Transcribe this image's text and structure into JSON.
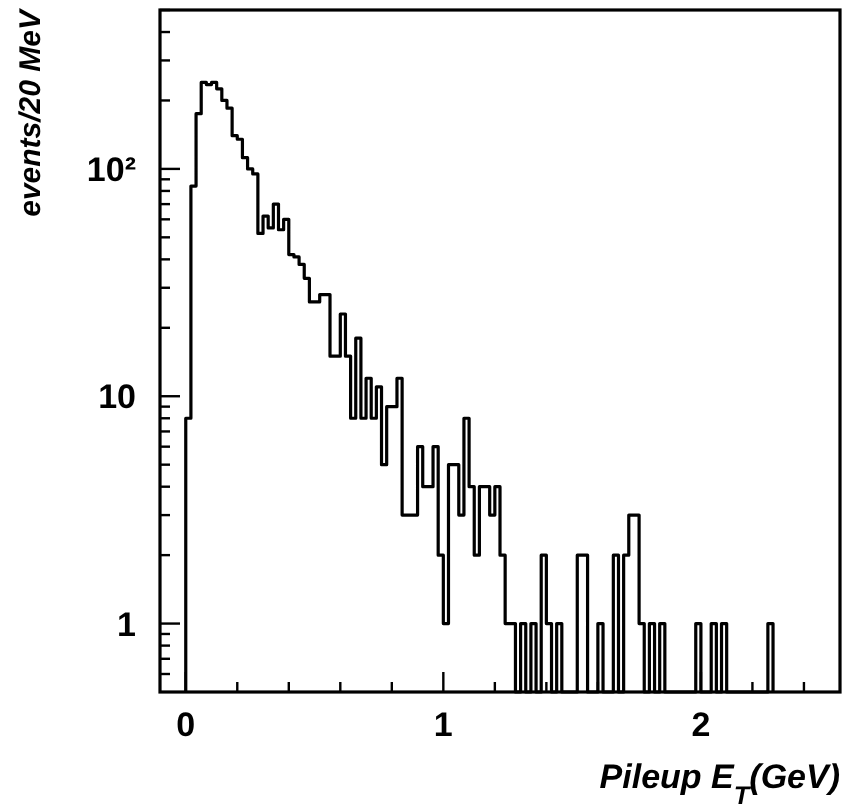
{
  "chart_data": {
    "type": "histogram",
    "xlabel": "Pileup E$_{T}$(GeV)",
    "ylabel": "events/20 MeV",
    "bins": [
      0,
      0.02,
      0.04,
      0.06,
      0.08,
      0.1,
      0.12,
      0.14,
      0.16,
      0.18,
      0.2,
      0.22,
      0.24,
      0.26,
      0.28,
      0.3,
      0.32,
      0.34,
      0.36,
      0.38,
      0.4,
      0.42,
      0.44,
      0.46,
      0.48,
      0.5,
      0.52,
      0.54,
      0.56,
      0.58,
      0.6,
      0.62,
      0.64,
      0.66,
      0.68,
      0.7,
      0.72,
      0.74,
      0.76,
      0.78,
      0.8,
      0.82,
      0.84,
      0.86,
      0.88,
      0.9,
      0.92,
      0.94,
      0.96,
      0.98,
      1,
      1.02,
      1.04,
      1.06,
      1.08,
      1.1,
      1.12,
      1.14,
      1.16,
      1.18,
      1.2,
      1.22,
      1.24,
      1.26,
      1.28,
      1.3,
      1.32,
      1.34,
      1.36,
      1.38,
      1.4,
      1.42,
      1.44,
      1.46,
      1.48,
      1.5,
      1.52,
      1.54,
      1.56,
      1.58,
      1.6,
      1.62,
      1.64,
      1.66,
      1.68,
      1.7,
      1.72,
      1.74,
      1.76,
      1.78,
      1.8,
      1.82,
      1.84,
      1.86,
      1.88,
      1.9,
      1.92,
      1.94,
      1.96,
      1.98,
      2,
      2.02,
      2.04,
      2.06,
      2.08,
      2.1,
      2.12,
      2.14,
      2.16,
      2.18,
      2.2,
      2.22,
      2.24,
      2.26,
      2.28
    ],
    "values": [
      8,
      84,
      175,
      240,
      235,
      240,
      225,
      200,
      185,
      140,
      135,
      112,
      100,
      95,
      52,
      62,
      55,
      70,
      54,
      60,
      42,
      41,
      38,
      33,
      26,
      26,
      28,
      28,
      15,
      15,
      23,
      15,
      8,
      18,
      8,
      12,
      8,
      11,
      5,
      9,
      9,
      12,
      3,
      3,
      3,
      6,
      4,
      4,
      6,
      2,
      1,
      5,
      5,
      3,
      8,
      4,
      2,
      4,
      4,
      3,
      4,
      2,
      1,
      1,
      null,
      1,
      null,
      1,
      null,
      2,
      1,
      null,
      1,
      null,
      null,
      null,
      2,
      2,
      null,
      null,
      1,
      null,
      null,
      2,
      null,
      2,
      3,
      3,
      1,
      null,
      1,
      null,
      1,
      null,
      null,
      null,
      null,
      null,
      null,
      1,
      null,
      null,
      1,
      null,
      1,
      null,
      null,
      null,
      null,
      null,
      null,
      null,
      null,
      1
    ],
    "color": "#000000",
    "log": true,
    "xlim": [
      -0.1,
      2.54
    ],
    "xticks": [
      0,
      {
        "value": 0.2,
        "label": null
      },
      {
        "value": 0.4,
        "label": null
      },
      {
        "value": 0.6,
        "label": null
      },
      {
        "value": 0.8,
        "label": null
      },
      1,
      {
        "value": 1.2,
        "label": null
      },
      {
        "value": 1.4,
        "label": null
      },
      {
        "value": 1.6,
        "label": null
      },
      {
        "value": 1.8,
        "label": null
      },
      2,
      {
        "value": 2.2,
        "label": null
      },
      {
        "value": 2.4,
        "label": null
      }
    ],
    "ylim": [
      0.5,
      500
    ],
    "yticks": [
      {
        "value": 0.6,
        "label": null
      },
      {
        "value": 0.7,
        "label": null
      },
      {
        "value": 0.8,
        "label": null
      },
      {
        "value": 0.9,
        "label": null
      },
      1,
      {
        "value": 2,
        "label": null
      },
      {
        "value": 3,
        "label": null
      },
      {
        "value": 4,
        "label": null
      },
      {
        "value": 5,
        "label": null
      },
      {
        "value": 6,
        "label": null
      },
      {
        "value": 7,
        "label": null
      },
      {
        "value": 8,
        "label": null
      },
      {
        "value": 9,
        "label": null
      },
      10,
      {
        "value": 20,
        "label": null
      },
      {
        "value": 30,
        "label": null
      },
      {
        "value": 40,
        "label": null
      },
      {
        "value": 50,
        "label": null
      },
      {
        "value": 60,
        "label": null
      },
      {
        "value": 70,
        "label": null
      },
      {
        "value": 80,
        "label": null
      },
      {
        "value": 90,
        "label": null
      },
      {
        "value": 100,
        "label": "10²"
      },
      {
        "value": 200,
        "label": null
      },
      {
        "value": 300,
        "label": null
      },
      {
        "value": 400,
        "label": null
      },
      {
        "value": 500,
        "label": null
      }
    ],
    "grid": false
  }
}
